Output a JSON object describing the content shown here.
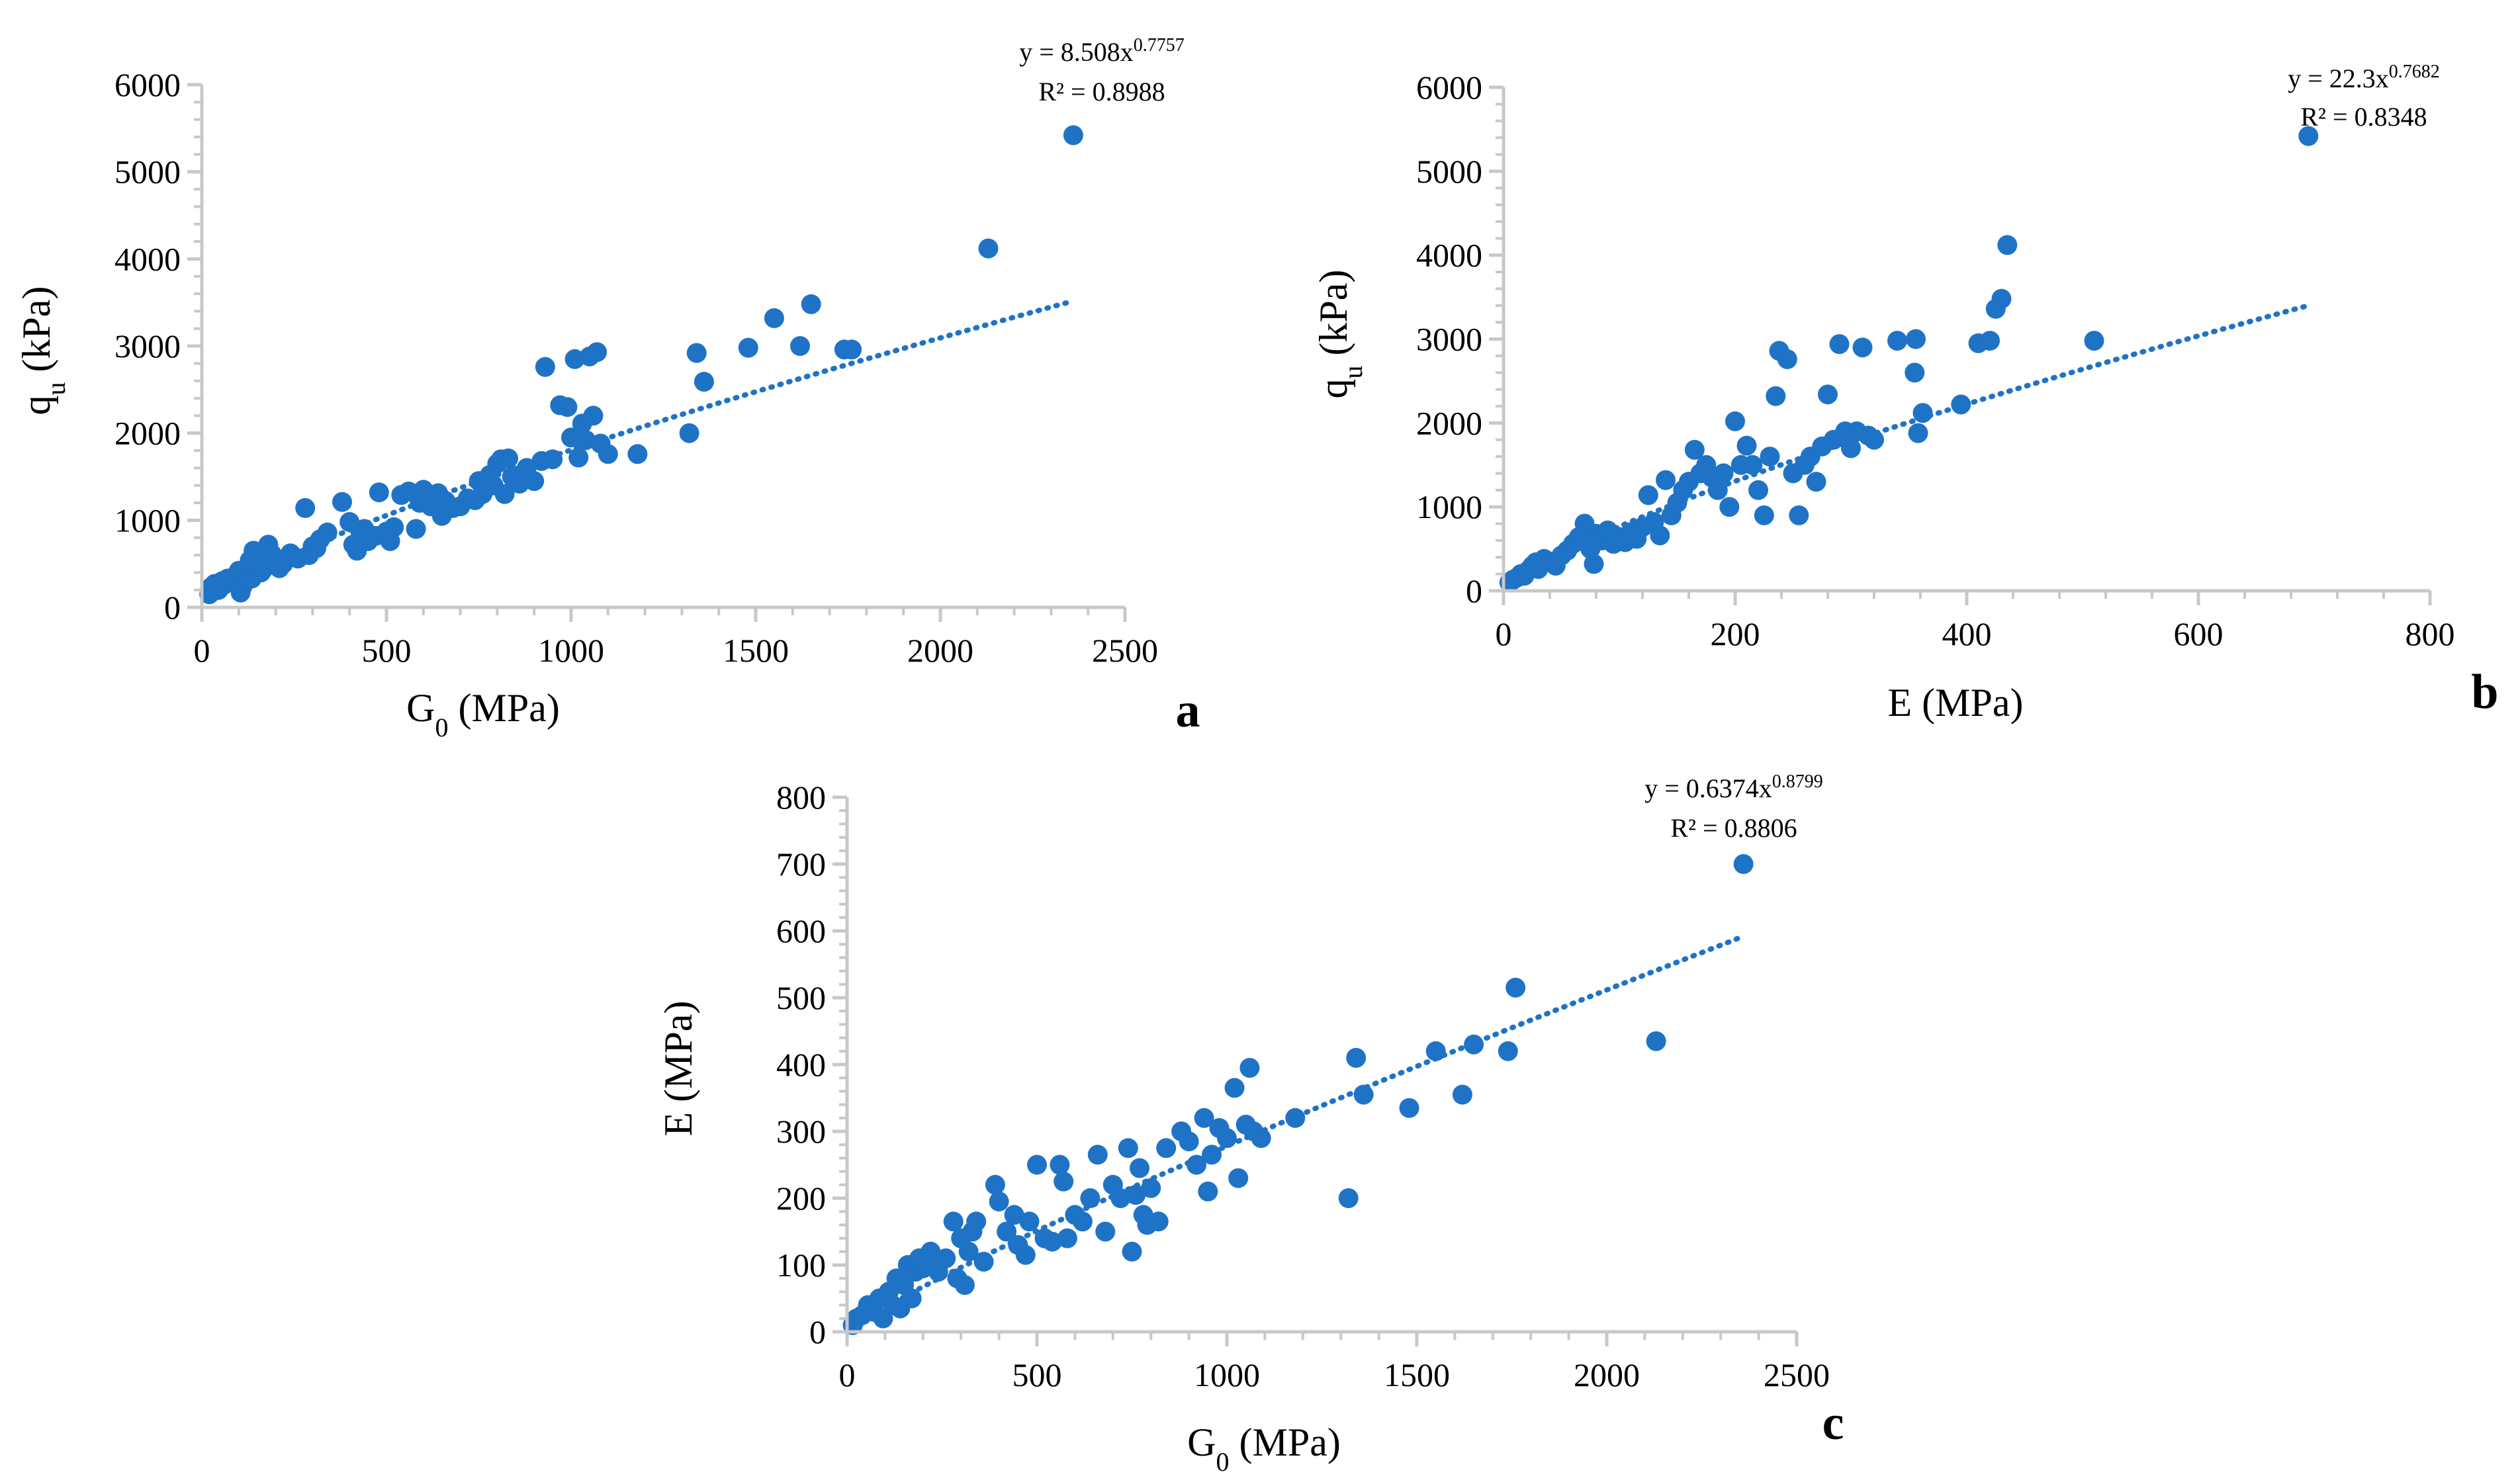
{
  "colors": {
    "marker": "#1F73C6",
    "trend": "#1F73C6",
    "axis": "#C8C8C8",
    "text": "#000000"
  },
  "chart_data": [
    {
      "panel": "a",
      "type": "scatter",
      "title": "",
      "xlabel": "G",
      "xlabel_sub": "0",
      "xlabel_rest": " (MPa)",
      "ylabel": "q",
      "ylabel_sub": "u",
      "ylabel_rest": " (kPa)",
      "xlim": [
        0,
        2500
      ],
      "ylim": [
        0,
        6000
      ],
      "xticks": [
        0,
        500,
        1000,
        1500,
        2000,
        2500
      ],
      "yticks": [
        0,
        1000,
        2000,
        3000,
        4000,
        5000,
        6000
      ],
      "xtick_labels": [
        "0",
        "500",
        "1000",
        "1500",
        "2000",
        "2500"
      ],
      "ytick_labels": [
        "0",
        "1000",
        "2000",
        "3000",
        "4000",
        "5000",
        "6000"
      ],
      "grid": false,
      "legend": "none",
      "trendline": {
        "type": "power",
        "a": 8.508,
        "b": 0.7757,
        "x_range": [
          20,
          2360
        ]
      },
      "equation": {
        "main": "y = 8.508x",
        "exponent": "0.7757",
        "r2": "R² = 0.8988"
      },
      "points": [
        [
          20,
          150
        ],
        [
          25,
          230
        ],
        [
          35,
          270
        ],
        [
          45,
          200
        ],
        [
          55,
          300
        ],
        [
          60,
          260
        ],
        [
          70,
          330
        ],
        [
          80,
          290
        ],
        [
          90,
          360
        ],
        [
          100,
          420
        ],
        [
          105,
          170
        ],
        [
          110,
          240
        ],
        [
          115,
          300
        ],
        [
          120,
          380
        ],
        [
          125,
          470
        ],
        [
          130,
          540
        ],
        [
          135,
          330
        ],
        [
          140,
          650
        ],
        [
          150,
          500
        ],
        [
          155,
          600
        ],
        [
          160,
          400
        ],
        [
          165,
          430
        ],
        [
          170,
          560
        ],
        [
          180,
          720
        ],
        [
          190,
          610
        ],
        [
          200,
          550
        ],
        [
          210,
          450
        ],
        [
          220,
          500
        ],
        [
          240,
          620
        ],
        [
          260,
          560
        ],
        [
          280,
          1140
        ],
        [
          290,
          600
        ],
        [
          300,
          700
        ],
        [
          310,
          680
        ],
        [
          320,
          780
        ],
        [
          340,
          860
        ],
        [
          380,
          1210
        ],
        [
          400,
          980
        ],
        [
          410,
          720
        ],
        [
          420,
          650
        ],
        [
          430,
          850
        ],
        [
          440,
          900
        ],
        [
          450,
          760
        ],
        [
          470,
          820
        ],
        [
          480,
          1320
        ],
        [
          500,
          870
        ],
        [
          510,
          760
        ],
        [
          520,
          920
        ],
        [
          540,
          1290
        ],
        [
          560,
          1330
        ],
        [
          580,
          900
        ],
        [
          590,
          1200
        ],
        [
          600,
          1350
        ],
        [
          610,
          1250
        ],
        [
          620,
          1160
        ],
        [
          640,
          1310
        ],
        [
          650,
          1050
        ],
        [
          660,
          1220
        ],
        [
          680,
          1140
        ],
        [
          700,
          1160
        ],
        [
          720,
          1250
        ],
        [
          740,
          1230
        ],
        [
          750,
          1450
        ],
        [
          760,
          1300
        ],
        [
          770,
          1380
        ],
        [
          780,
          1520
        ],
        [
          790,
          1400
        ],
        [
          800,
          1650
        ],
        [
          810,
          1700
        ],
        [
          820,
          1300
        ],
        [
          830,
          1710
        ],
        [
          840,
          1500
        ],
        [
          860,
          1420
        ],
        [
          880,
          1600
        ],
        [
          900,
          1450
        ],
        [
          920,
          1680
        ],
        [
          930,
          2760
        ],
        [
          950,
          1700
        ],
        [
          970,
          2320
        ],
        [
          990,
          2300
        ],
        [
          1000,
          1950
        ],
        [
          1010,
          2850
        ],
        [
          1020,
          1720
        ],
        [
          1030,
          2110
        ],
        [
          1040,
          1920
        ],
        [
          1050,
          2880
        ],
        [
          1060,
          2200
        ],
        [
          1070,
          2930
        ],
        [
          1080,
          1880
        ],
        [
          1100,
          1760
        ],
        [
          1180,
          1760
        ],
        [
          1320,
          2000
        ],
        [
          1340,
          2920
        ],
        [
          1360,
          2590
        ],
        [
          1480,
          2980
        ],
        [
          1550,
          3320
        ],
        [
          1620,
          3000
        ],
        [
          1650,
          3480
        ],
        [
          1740,
          2960
        ],
        [
          1760,
          2960
        ],
        [
          2130,
          4120
        ],
        [
          2360,
          5420
        ]
      ]
    },
    {
      "panel": "b",
      "type": "scatter",
      "title": "",
      "xlabel": "E (MPa)",
      "ylabel": "q",
      "ylabel_sub": "u",
      "ylabel_rest": " (kPa)",
      "xlim": [
        0,
        800
      ],
      "ylim": [
        0,
        6000
      ],
      "xticks": [
        0,
        200,
        400,
        600,
        800
      ],
      "yticks": [
        0,
        1000,
        2000,
        3000,
        4000,
        5000,
        6000
      ],
      "xtick_labels": [
        "0",
        "200",
        "400",
        "600",
        "800"
      ],
      "ytick_labels": [
        "0",
        "1000",
        "2000",
        "3000",
        "4000",
        "5000",
        "6000"
      ],
      "grid": false,
      "legend": "none",
      "trendline": {
        "type": "power",
        "a": 22.3,
        "b": 0.7682,
        "x_range": [
          5,
          695
        ]
      },
      "equation": {
        "main": "y = 22.3x",
        "exponent": "0.7682",
        "r2": "R² = 0.8348"
      },
      "points": [
        [
          5,
          100
        ],
        [
          8,
          130
        ],
        [
          12,
          160
        ],
        [
          15,
          200
        ],
        [
          18,
          180
        ],
        [
          22,
          250
        ],
        [
          25,
          300
        ],
        [
          28,
          340
        ],
        [
          30,
          260
        ],
        [
          35,
          380
        ],
        [
          40,
          350
        ],
        [
          45,
          300
        ],
        [
          50,
          420
        ],
        [
          55,
          480
        ],
        [
          60,
          560
        ],
        [
          65,
          640
        ],
        [
          70,
          800
        ],
        [
          75,
          500
        ],
        [
          78,
          320
        ],
        [
          80,
          680
        ],
        [
          85,
          600
        ],
        [
          90,
          720
        ],
        [
          95,
          560
        ],
        [
          100,
          640
        ],
        [
          105,
          580
        ],
        [
          110,
          700
        ],
        [
          115,
          620
        ],
        [
          120,
          760
        ],
        [
          125,
          1140
        ],
        [
          130,
          820
        ],
        [
          135,
          660
        ],
        [
          140,
          1320
        ],
        [
          145,
          900
        ],
        [
          150,
          1050
        ],
        [
          155,
          1200
        ],
        [
          160,
          1300
        ],
        [
          165,
          1680
        ],
        [
          170,
          1400
        ],
        [
          175,
          1500
        ],
        [
          180,
          1350
        ],
        [
          185,
          1200
        ],
        [
          190,
          1400
        ],
        [
          195,
          1000
        ],
        [
          200,
          2020
        ],
        [
          205,
          1500
        ],
        [
          210,
          1730
        ],
        [
          215,
          1500
        ],
        [
          220,
          1200
        ],
        [
          225,
          900
        ],
        [
          230,
          1600
        ],
        [
          235,
          2320
        ],
        [
          238,
          2860
        ],
        [
          245,
          2760
        ],
        [
          250,
          1400
        ],
        [
          255,
          900
        ],
        [
          260,
          1500
        ],
        [
          265,
          1600
        ],
        [
          270,
          1300
        ],
        [
          275,
          1720
        ],
        [
          280,
          2340
        ],
        [
          285,
          1800
        ],
        [
          290,
          2940
        ],
        [
          295,
          1900
        ],
        [
          300,
          1700
        ],
        [
          305,
          1900
        ],
        [
          310,
          2900
        ],
        [
          315,
          1850
        ],
        [
          320,
          1800
        ],
        [
          340,
          2980
        ],
        [
          355,
          2600
        ],
        [
          356,
          3000
        ],
        [
          358,
          1880
        ],
        [
          362,
          2120
        ],
        [
          395,
          2220
        ],
        [
          410,
          2950
        ],
        [
          420,
          2980
        ],
        [
          425,
          3360
        ],
        [
          430,
          3480
        ],
        [
          435,
          4120
        ],
        [
          510,
          2980
        ],
        [
          695,
          5420
        ]
      ]
    },
    {
      "panel": "c",
      "type": "scatter",
      "title": "",
      "xlabel": "G",
      "xlabel_sub": "0",
      "xlabel_rest": " (MPa)",
      "ylabel": "E (MPa)",
      "xlim": [
        0,
        2500
      ],
      "ylim": [
        0,
        800
      ],
      "xticks": [
        0,
        500,
        1000,
        1500,
        2000,
        2500
      ],
      "yticks": [
        0,
        100,
        200,
        300,
        400,
        500,
        600,
        700,
        800
      ],
      "xtick_labels": [
        "0",
        "500",
        "1000",
        "1500",
        "2000",
        "2500"
      ],
      "ytick_labels": [
        "0",
        "100",
        "200",
        "300",
        "400",
        "500",
        "600",
        "700",
        "800"
      ],
      "grid": false,
      "legend": "none",
      "trendline": {
        "type": "power",
        "a": 0.6374,
        "b": 0.8799,
        "x_range": [
          20,
          2360
        ]
      },
      "equation": {
        "main": "y = 0.6374x",
        "exponent": "0.8799",
        "r2": "R² = 0.8806"
      },
      "points": [
        [
          15,
          10
        ],
        [
          25,
          20
        ],
        [
          40,
          25
        ],
        [
          55,
          40
        ],
        [
          70,
          30
        ],
        [
          85,
          50
        ],
        [
          95,
          20
        ],
        [
          110,
          60
        ],
        [
          120,
          40
        ],
        [
          130,
          80
        ],
        [
          140,
          35
        ],
        [
          150,
          70
        ],
        [
          160,
          100
        ],
        [
          170,
          50
        ],
        [
          180,
          90
        ],
        [
          190,
          110
        ],
        [
          200,
          95
        ],
        [
          210,
          105
        ],
        [
          220,
          120
        ],
        [
          240,
          90
        ],
        [
          260,
          110
        ],
        [
          280,
          165
        ],
        [
          290,
          80
        ],
        [
          300,
          140
        ],
        [
          310,
          70
        ],
        [
          320,
          120
        ],
        [
          330,
          150
        ],
        [
          340,
          165
        ],
        [
          360,
          105
        ],
        [
          390,
          220
        ],
        [
          400,
          195
        ],
        [
          420,
          150
        ],
        [
          440,
          175
        ],
        [
          450,
          130
        ],
        [
          470,
          115
        ],
        [
          480,
          165
        ],
        [
          500,
          250
        ],
        [
          520,
          140
        ],
        [
          540,
          135
        ],
        [
          560,
          250
        ],
        [
          570,
          225
        ],
        [
          580,
          140
        ],
        [
          600,
          175
        ],
        [
          620,
          165
        ],
        [
          640,
          200
        ],
        [
          660,
          265
        ],
        [
          680,
          150
        ],
        [
          700,
          220
        ],
        [
          720,
          200
        ],
        [
          740,
          275
        ],
        [
          750,
          120
        ],
        [
          760,
          205
        ],
        [
          770,
          245
        ],
        [
          780,
          175
        ],
        [
          790,
          160
        ],
        [
          800,
          215
        ],
        [
          820,
          165
        ],
        [
          840,
          275
        ],
        [
          880,
          300
        ],
        [
          900,
          285
        ],
        [
          920,
          250
        ],
        [
          940,
          320
        ],
        [
          950,
          210
        ],
        [
          960,
          265
        ],
        [
          980,
          305
        ],
        [
          1000,
          290
        ],
        [
          1020,
          365
        ],
        [
          1030,
          230
        ],
        [
          1050,
          310
        ],
        [
          1060,
          395
        ],
        [
          1070,
          300
        ],
        [
          1090,
          290
        ],
        [
          1180,
          320
        ],
        [
          1320,
          200
        ],
        [
          1340,
          410
        ],
        [
          1360,
          355
        ],
        [
          1480,
          335
        ],
        [
          1550,
          420
        ],
        [
          1620,
          355
        ],
        [
          1650,
          430
        ],
        [
          1740,
          420
        ],
        [
          1760,
          515
        ],
        [
          2130,
          435
        ],
        [
          2360,
          700
        ]
      ]
    }
  ]
}
